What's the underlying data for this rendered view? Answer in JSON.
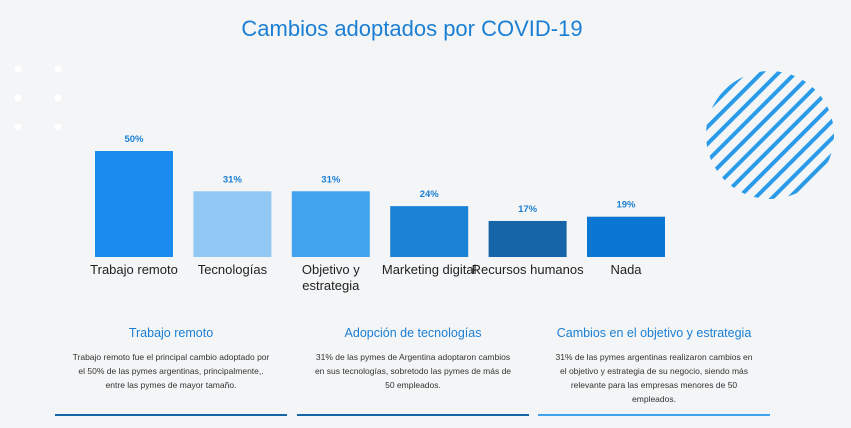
{
  "chart_data": {
    "type": "bar",
    "title": "Cambios adoptados por COVID-19",
    "categories": [
      "Trabajo remoto",
      "Tecnologías",
      "Objetivo y estrategia",
      "Marketing digital",
      "Recursos humanos",
      "Nada"
    ],
    "values": [
      50,
      31,
      31,
      24,
      17,
      19
    ],
    "value_labels": [
      "50%",
      "31%",
      "31%",
      "24%",
      "17%",
      "19%"
    ],
    "colors": [
      "#1a8cf0",
      "#92c9f4",
      "#42a4ee",
      "#1c82d6",
      "#1565a8",
      "#0b76d4"
    ]
  },
  "cards": [
    {
      "title": "Trabajo remoto",
      "text": "Trabajo remoto fue el principal cambio adoptado por el 50% de las pymes argentinas, principalmente,. entre las pymes de mayor tamaño."
    },
    {
      "title": "Adopción de tecnologías",
      "text": "31% de las pymes de Argentina adoptaron cambios en sus tecnologías, sobretodo las pymes de más de 50 empleados."
    },
    {
      "title": "Cambios en el objetivo y estrategia",
      "text": "31% de las pymes argentinas realizaron cambios en el objetivo y estrategia de su negocio, siendo más relevante para las empresas menores de 50 empleados."
    }
  ]
}
